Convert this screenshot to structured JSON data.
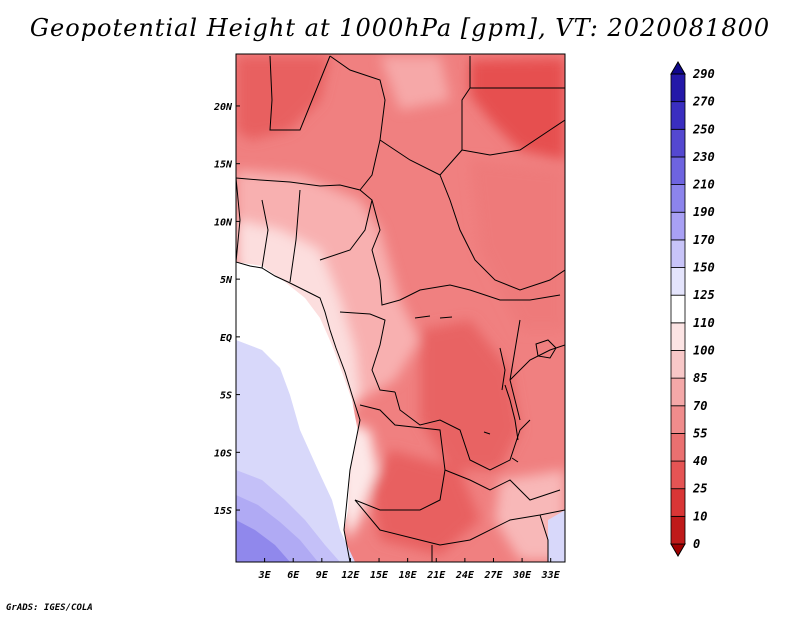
{
  "title": "Geopotential Height at 1000hPa [gpm], VT: 2020081800",
  "footer": "GrADS: IGES/COLA",
  "colors": {
    "map_dark_red": "#e04848",
    "map_mid_red": "#f08080",
    "map_light_red": "#f8b4b4",
    "map_pale": "#fcdede",
    "ocean_white": "#ffffff",
    "ocean_lavender": "#d8d8fa",
    "ocean_blue": "#b0aaf4",
    "ocean_violet": "#8c84ec",
    "border": "#000000"
  },
  "chart_data": {
    "type": "heatmap",
    "title": "Geopotential Height at 1000hPa [gpm], VT: 2020081800",
    "x_axis": {
      "ticks": [
        "3E",
        "6E",
        "9E",
        "12E",
        "15E",
        "18E",
        "21E",
        "24E",
        "27E",
        "30E",
        "33E"
      ],
      "range": [
        0,
        34.5
      ]
    },
    "y_axis": {
      "ticks": [
        "15S",
        "10S",
        "5S",
        "EQ",
        "5N",
        "10N",
        "15N",
        "20N"
      ],
      "range": [
        -19.5,
        24.5
      ]
    },
    "colorbar": {
      "levels": [
        "0",
        "10",
        "25",
        "40",
        "55",
        "70",
        "85",
        "100",
        "110",
        "125",
        "150",
        "170",
        "190",
        "210",
        "230",
        "250",
        "270",
        "290"
      ],
      "colors": [
        "#a00000",
        "#bf1a1a",
        "#d93636",
        "#e55454",
        "#ea7070",
        "#f08c8c",
        "#f4a8a8",
        "#f8c8c8",
        "#fce4e4",
        "#ffffff",
        "#e4e4fc",
        "#c8c4f8",
        "#a8a0f4",
        "#8c84ec",
        "#6e64e0",
        "#5448d0",
        "#3a2ec0",
        "#2418a8",
        "#10088c"
      ]
    }
  }
}
